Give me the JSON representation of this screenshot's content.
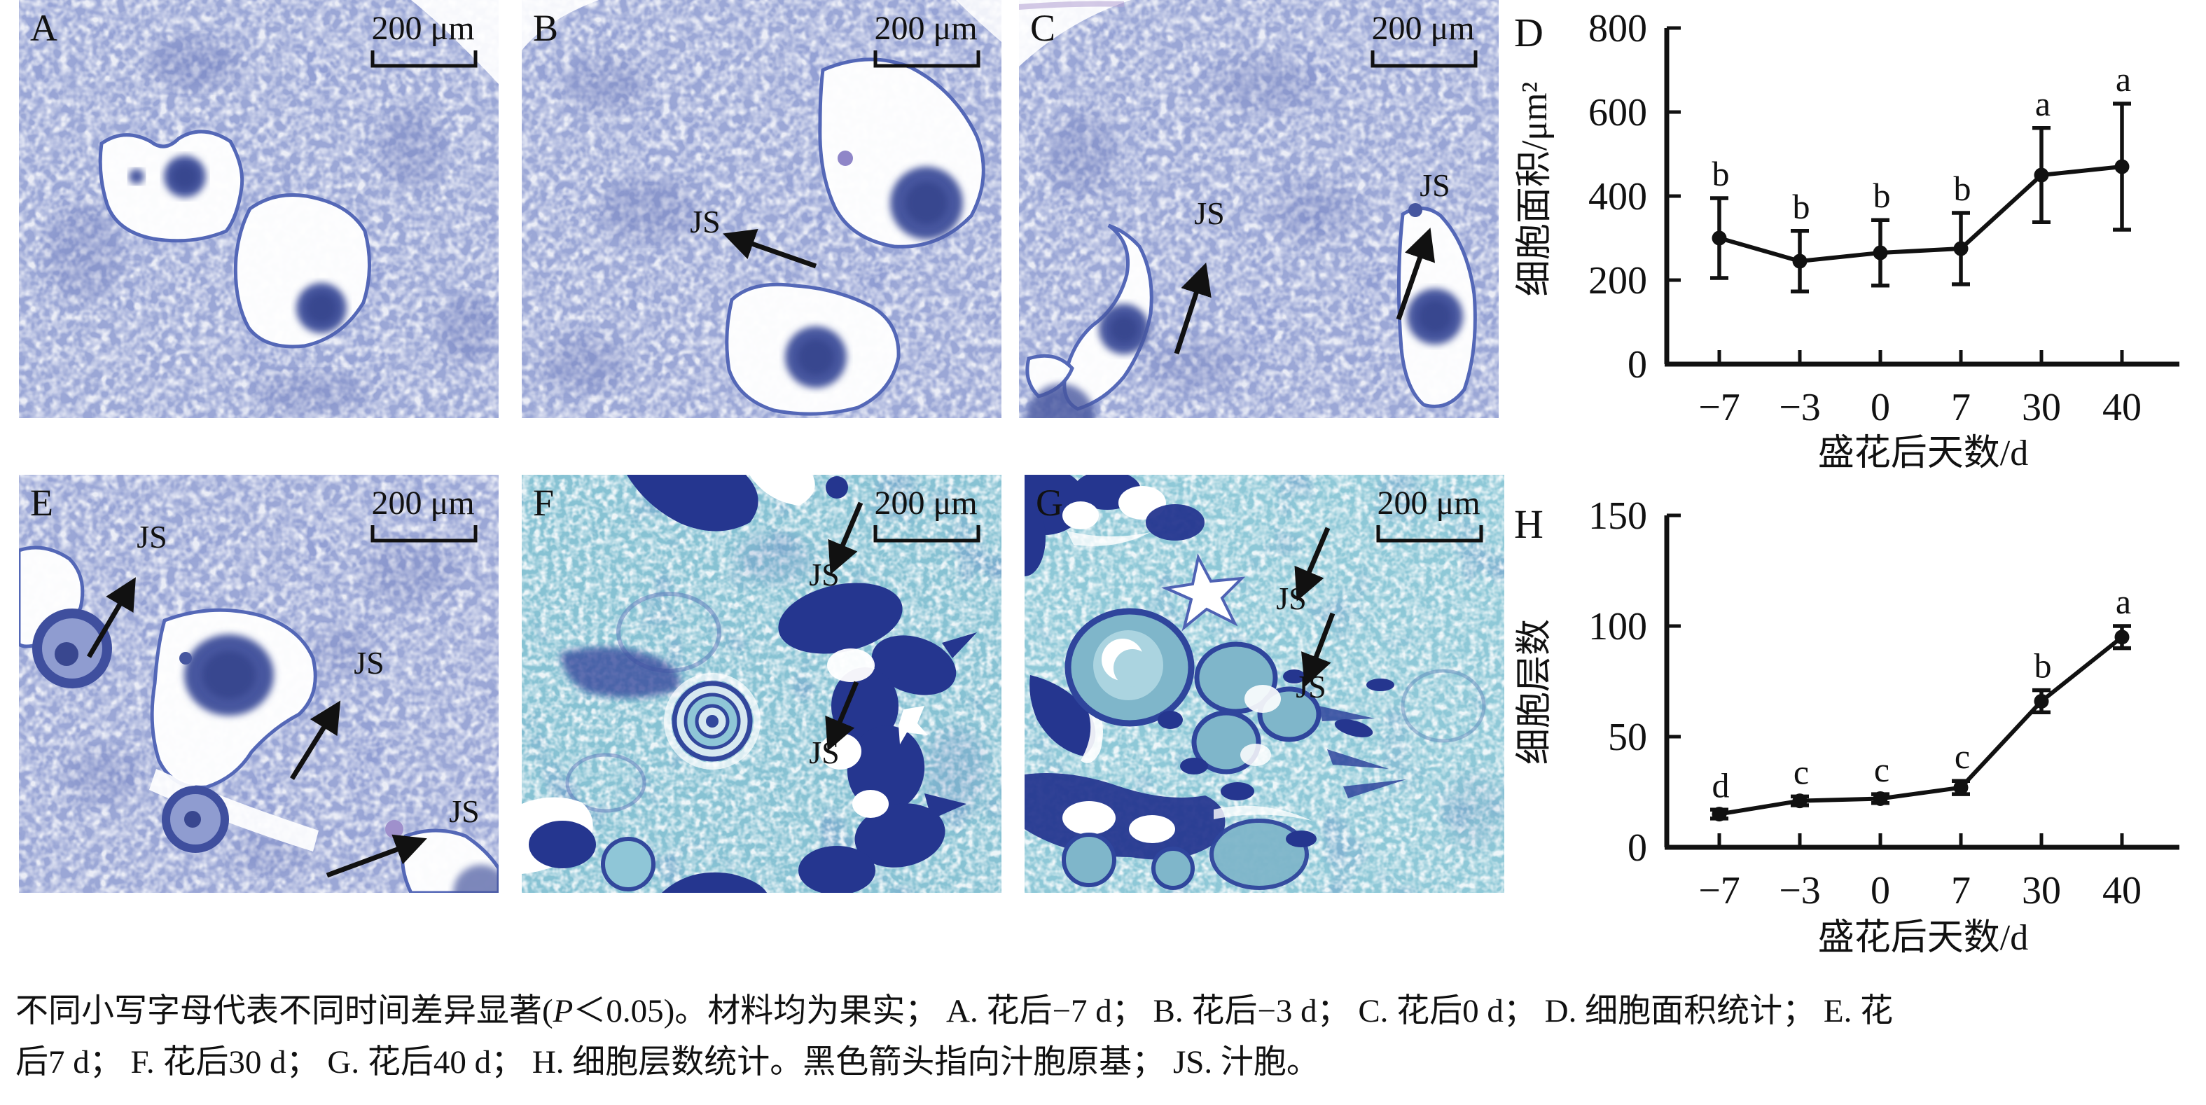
{
  "panels": [
    {
      "id": "A",
      "label": "A",
      "scale_bar": "200 μm",
      "js_labels": []
    },
    {
      "id": "B",
      "label": "B",
      "scale_bar": "200 μm",
      "js_labels": [
        "JS"
      ]
    },
    {
      "id": "C",
      "label": "C",
      "scale_bar": "200 μm",
      "js_labels": [
        "JS",
        "JS"
      ]
    },
    {
      "id": "E",
      "label": "E",
      "scale_bar": "200 μm",
      "js_labels": [
        "JS",
        "JS",
        "JS"
      ]
    },
    {
      "id": "F",
      "label": "F",
      "scale_bar": "200 μm",
      "js_labels": [
        "JS",
        "JS"
      ]
    },
    {
      "id": "G",
      "label": "G",
      "scale_bar": "200 μm",
      "js_labels": [
        "JS",
        "JS"
      ]
    }
  ],
  "chart_data": [
    {
      "type": "line",
      "panel_label": "D",
      "x_categories": [
        "−7",
        "−3",
        "0",
        "7",
        "30",
        "40"
      ],
      "values": [
        300,
        245,
        265,
        275,
        450,
        470
      ],
      "errors": [
        95,
        72,
        78,
        85,
        112,
        150
      ],
      "sig_letters": [
        "b",
        "b",
        "b",
        "b",
        "a",
        "a"
      ],
      "ylabel": "细胞面积/μm²",
      "xlabel": "盛花后天数/d",
      "yticks": [
        0,
        200,
        400,
        600,
        800
      ],
      "ylim": [
        0,
        800
      ],
      "grid": false,
      "legend": "none"
    },
    {
      "type": "line",
      "panel_label": "H",
      "x_categories": [
        "−7",
        "−3",
        "0",
        "7",
        "30",
        "40"
      ],
      "values": [
        15,
        21,
        22,
        27,
        66,
        95
      ],
      "errors": [
        2,
        2,
        2,
        3,
        5,
        5
      ],
      "sig_letters": [
        "d",
        "c",
        "c",
        "c",
        "b",
        "a"
      ],
      "ylabel": "细胞层数",
      "xlabel": "盛花后天数/d",
      "yticks": [
        0,
        50,
        100,
        150
      ],
      "ylim": [
        0,
        150
      ],
      "grid": false,
      "legend": "none"
    }
  ],
  "caption": {
    "line1_pre_italic": "不同小写字母代表不同时间差异显著(",
    "line1_italic": "P",
    "line1_post_italic": "＜0.05)。材料均为果实； A. 花后−7 d； B. 花后−3 d； C. 花后0 d； D. 细胞面积统计； E. 花",
    "line2": "后7 d； F. 花后30 d； G. 花后40 d； H. 细胞层数统计。黑色箭头指向汁胞原基； JS. 汁胞。"
  }
}
